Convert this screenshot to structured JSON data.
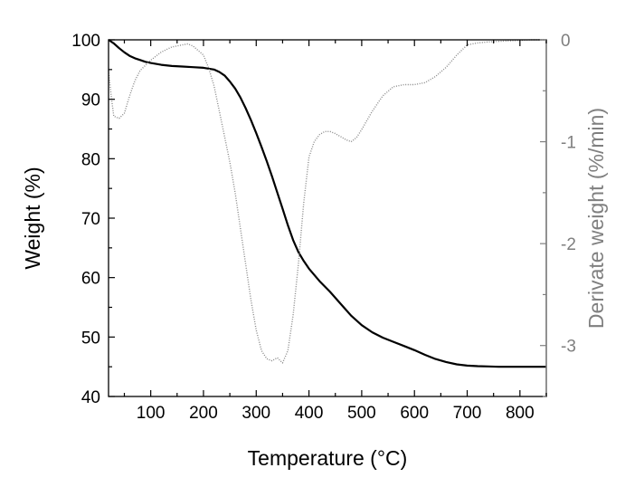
{
  "chart_data": {
    "type": "line",
    "title": "",
    "xlabel": "Temperature (°C)",
    "ylabel": "Weight (%)",
    "y2label": "Derivate weight (%/min)",
    "xlim": [
      20,
      850
    ],
    "ylim": [
      40,
      100
    ],
    "y2lim": [
      -3.5,
      0
    ],
    "xticks": [
      "100",
      "200",
      "300",
      "400",
      "500",
      "600",
      "700",
      "800"
    ],
    "yticks": [
      "40",
      "50",
      "60",
      "70",
      "80",
      "90",
      "100"
    ],
    "y2ticks": [
      "-3",
      "-2",
      "-1",
      "0"
    ],
    "grid": false,
    "legend": "none",
    "colors": {
      "weight": "#000000",
      "derivative": "#888888",
      "axes": "#000000",
      "right_axis": "#7f7f7f"
    },
    "series": [
      {
        "axis": "left",
        "x": [
          20,
          30,
          40,
          50,
          60,
          70,
          80,
          90,
          100,
          120,
          140,
          160,
          180,
          200,
          220,
          230,
          240,
          250,
          260,
          270,
          280,
          290,
          300,
          310,
          320,
          330,
          340,
          350,
          360,
          370,
          380,
          390,
          400,
          420,
          440,
          460,
          480,
          500,
          520,
          540,
          560,
          580,
          600,
          620,
          640,
          660,
          680,
          700,
          720,
          740,
          760,
          780,
          800,
          820,
          850
        ],
        "values": [
          100,
          99.4,
          98.6,
          97.9,
          97.3,
          96.9,
          96.6,
          96.3,
          96.1,
          95.8,
          95.6,
          95.5,
          95.4,
          95.3,
          95.0,
          94.6,
          94.0,
          93.0,
          91.8,
          90.3,
          88.5,
          86.5,
          84.3,
          82.0,
          79.6,
          77.0,
          74.3,
          71.6,
          68.8,
          66.3,
          64.3,
          62.8,
          61.5,
          59.4,
          57.6,
          55.6,
          53.6,
          52.0,
          50.8,
          49.9,
          49.2,
          48.5,
          47.8,
          47.0,
          46.3,
          45.8,
          45.4,
          45.2,
          45.1,
          45.05,
          45.0,
          45.0,
          45.0,
          45.0,
          45.0
        ]
      },
      {
        "axis": "right",
        "x": [
          20,
          25,
          30,
          40,
          50,
          60,
          70,
          80,
          100,
          120,
          140,
          160,
          170,
          180,
          200,
          210,
          220,
          230,
          240,
          250,
          260,
          270,
          280,
          290,
          300,
          310,
          320,
          330,
          340,
          350,
          360,
          370,
          380,
          390,
          400,
          410,
          420,
          430,
          440,
          450,
          460,
          470,
          480,
          490,
          500,
          520,
          540,
          560,
          580,
          600,
          620,
          640,
          660,
          680,
          700,
          720,
          740,
          760,
          780,
          800,
          820,
          850
        ],
        "values": [
          -0.3,
          -0.55,
          -0.75,
          -0.77,
          -0.72,
          -0.55,
          -0.4,
          -0.3,
          -0.2,
          -0.12,
          -0.07,
          -0.05,
          -0.04,
          -0.06,
          -0.15,
          -0.28,
          -0.45,
          -0.7,
          -0.95,
          -1.2,
          -1.5,
          -1.85,
          -2.2,
          -2.55,
          -2.85,
          -3.05,
          -3.13,
          -3.15,
          -3.12,
          -3.17,
          -3.05,
          -2.7,
          -2.2,
          -1.6,
          -1.15,
          -1.0,
          -0.93,
          -0.9,
          -0.9,
          -0.92,
          -0.95,
          -0.98,
          -1.0,
          -0.96,
          -0.88,
          -0.7,
          -0.55,
          -0.46,
          -0.44,
          -0.44,
          -0.42,
          -0.36,
          -0.27,
          -0.15,
          -0.05,
          -0.03,
          -0.02,
          -0.015,
          -0.01,
          -0.005,
          0,
          0
        ]
      }
    ]
  }
}
